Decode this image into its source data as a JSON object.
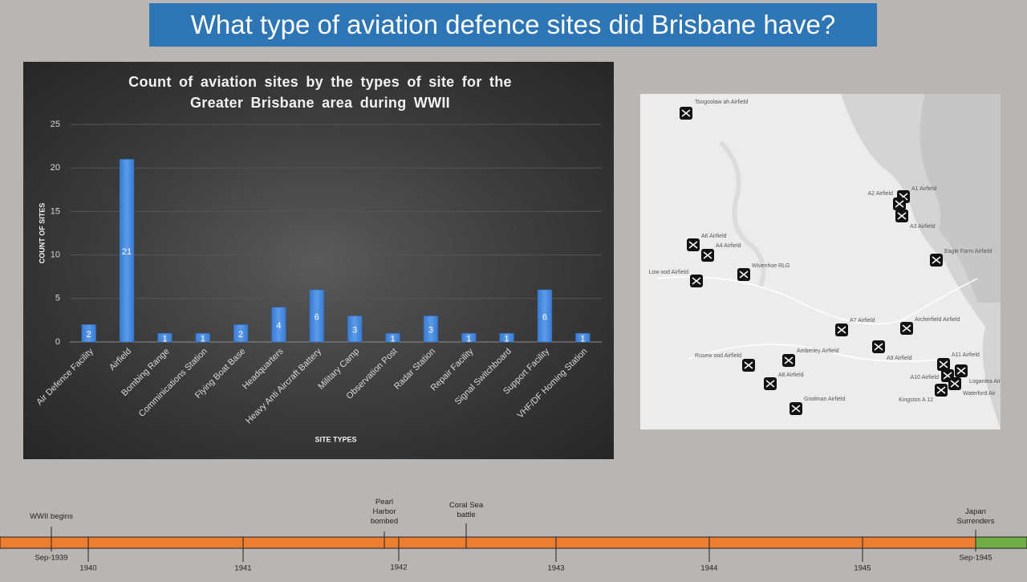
{
  "header": {
    "title": "What type of aviation defence sites did Brisbane have?"
  },
  "chart_data": {
    "type": "bar",
    "title": "Count of aviation sites by the types of site for the Greater Brisbane area during WWII",
    "x_label": "SITE TYPES",
    "y_label": "COUNT OF SITES",
    "categories": [
      "Air Defence Facility",
      "Airfield",
      "Bombing Range",
      "Comminications Station",
      "Flying Boat Base",
      "Headquarters",
      "Heavy Anti Aircraft Battery",
      "Military Camp",
      "Observation Post",
      "Radar Station",
      "Repair Facility",
      "Signal Switchboard",
      "Support Facility",
      "VHF/DF Homing Station"
    ],
    "values": [
      2,
      21,
      1,
      1,
      2,
      4,
      6,
      3,
      1,
      3,
      1,
      1,
      6,
      1
    ],
    "color": "#3a7ad0",
    "ylim": [
      0,
      25
    ],
    "yticks": [
      0,
      5,
      10,
      15,
      20,
      25
    ],
    "grid": true
  },
  "map": {
    "labels": [
      "Toogoolaw ah Airfield",
      "A1 Airfield",
      "A2 Airfield",
      "A3 Airfield",
      "A6 Airfield",
      "A4 Airfield",
      "Eagle Farm Airfield",
      "Low ood Airfield",
      "Wivenhoe RLG",
      "A7 Airfield",
      "Archerfield Airfield",
      "A9 Airfield",
      "Rosew ood Airfield",
      "Amberley Airfield",
      "A8 Airfield",
      "A11 Airfield",
      "A10 Airfield",
      "Loganlea Air",
      "Kingston A 12",
      "Waterford Air",
      "Goolman Airfield"
    ]
  },
  "timeline": {
    "events": [
      "WWII begins",
      "Pearl Harbor bombed",
      "Coral Sea battle",
      "Japan Surrenders"
    ],
    "ticks": [
      "Sep-1939",
      "1940",
      "1941",
      "1942",
      "1943",
      "1944",
      "1945",
      "Sep-1945"
    ]
  }
}
